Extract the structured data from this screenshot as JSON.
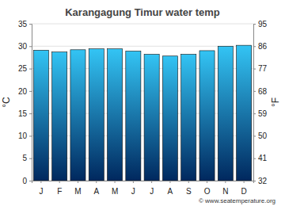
{
  "chart_data": {
    "type": "bar",
    "title": "Karangagung Timur water temp",
    "categories": [
      "J",
      "F",
      "M",
      "A",
      "M",
      "J",
      "J",
      "A",
      "S",
      "O",
      "N",
      "D"
    ],
    "values": [
      29.1,
      28.7,
      29.2,
      29.4,
      29.4,
      28.9,
      28.2,
      27.8,
      28.2,
      29.0,
      30.0,
      30.2
    ],
    "color": "#33c4f4",
    "ylabel": "°C",
    "y2label": "°F",
    "ylim": [
      0,
      35
    ],
    "yticks": [
      0,
      5,
      10,
      15,
      20,
      25,
      30,
      35
    ],
    "y2lim": [
      32,
      95
    ],
    "y2ticks": [
      32,
      41,
      50,
      59,
      68,
      77,
      86,
      95
    ],
    "grid": true,
    "annotations": [
      "© www.seatemperature.org"
    ]
  }
}
